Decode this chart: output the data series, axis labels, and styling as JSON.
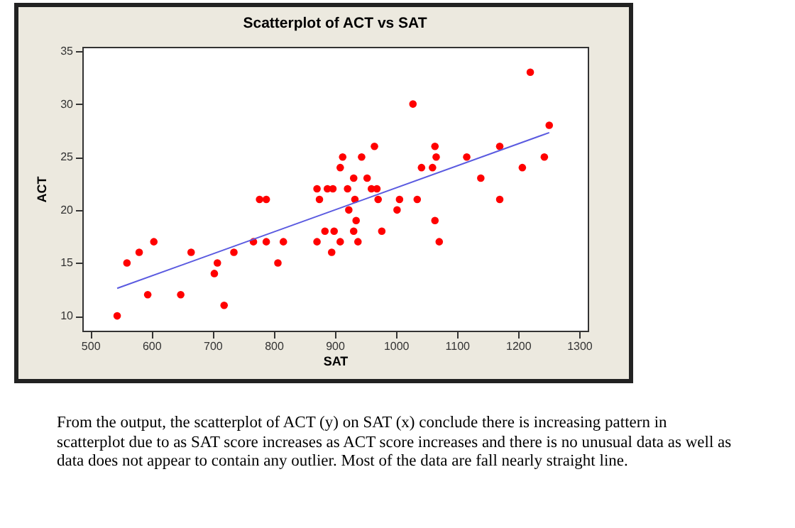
{
  "chart_data": {
    "type": "scatter",
    "title": "Scatterplot of ACT vs SAT",
    "xlabel": "SAT",
    "ylabel": "ACT",
    "xlim": [
      487,
      1314
    ],
    "ylim": [
      8.6,
      35.4
    ],
    "xticks": [
      500,
      600,
      700,
      800,
      900,
      1000,
      1100,
      1200,
      1300
    ],
    "yticks": [
      10,
      15,
      20,
      25,
      30,
      35
    ],
    "grid": false,
    "series": [
      {
        "marker": "circle",
        "color": "#ff0000",
        "x": [
          544,
          560,
          580,
          594,
          604,
          648,
          665,
          703,
          708,
          719,
          735,
          767,
          777,
          788,
          788,
          807,
          816,
          871,
          871,
          875,
          884,
          888,
          897,
          895,
          899,
          909,
          913,
          909,
          921,
          923,
          931,
          933,
          931,
          935,
          938,
          944,
          953,
          960,
          965,
          969,
          971,
          977,
          1002,
          1006,
          1028,
          1035,
          1042,
          1060,
          1064,
          1066,
          1064,
          1071,
          1116,
          1139,
          1170,
          1170,
          1207,
          1220,
          1243,
          1251
        ],
        "values": [
          10,
          15,
          16,
          12,
          17,
          12,
          16,
          14,
          15,
          11,
          16,
          17,
          21,
          21,
          17,
          15,
          17,
          22,
          17,
          21,
          18,
          22,
          22,
          16,
          18,
          24,
          25,
          17,
          22,
          20,
          23,
          21,
          18,
          19,
          17,
          25,
          23,
          22,
          26,
          22,
          21,
          18,
          20,
          21,
          30,
          21,
          24,
          24,
          26,
          25,
          19,
          17,
          25,
          23,
          26,
          21,
          24,
          33,
          25,
          28
        ]
      },
      {
        "type": "line",
        "color": "#5a5ae0",
        "x": [
          544,
          1251
        ],
        "values": [
          12.6,
          27.3
        ]
      }
    ],
    "annotations": [
      "From the output, the scatterplot of ACT (y) on SAT (x) conclude there is increasing pattern in scatterplot due to as SAT score increases as ACT score increases and there is no unusual data as well as data does not appear to contain any outlier. Most of the data are fall nearly straight line."
    ]
  }
}
